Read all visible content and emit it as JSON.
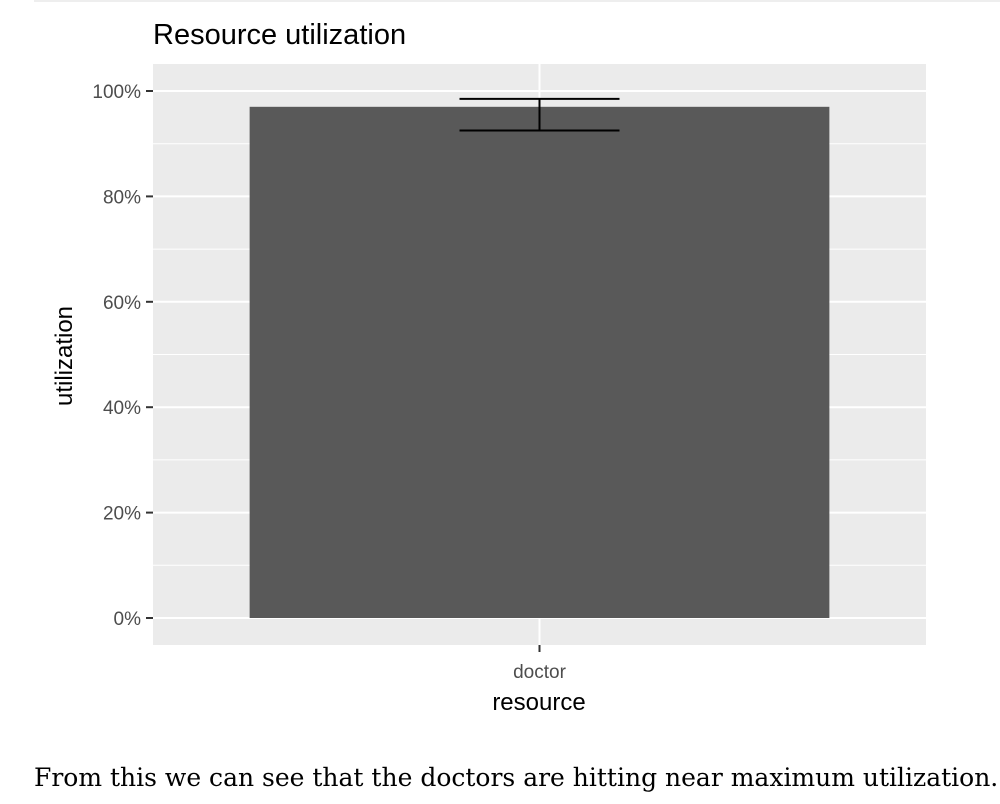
{
  "chart_data": {
    "type": "bar",
    "title": "Resource utilization",
    "xlabel": "resource",
    "ylabel": "utilization",
    "categories": [
      "doctor"
    ],
    "values": [
      0.97
    ],
    "error_bars": [
      {
        "low": 0.925,
        "high": 0.985
      }
    ],
    "ylim": [
      -0.05,
      1.05
    ],
    "yticks": [
      0,
      0.2,
      0.4,
      0.6,
      0.8,
      1.0
    ],
    "ytick_labels": [
      "0%",
      "20%",
      "40%",
      "60%",
      "80%",
      "100%"
    ],
    "grid": true,
    "legend": "none",
    "colors": {
      "bar": "#595959",
      "panel": "#ebebeb",
      "grid": "#ffffff",
      "errorbar": "#000000",
      "tick_text": "#4d4d4d",
      "text": "#000000"
    }
  },
  "caption": {
    "text": "From this we can see that the doctors are hitting near maximum utilization. V"
  }
}
